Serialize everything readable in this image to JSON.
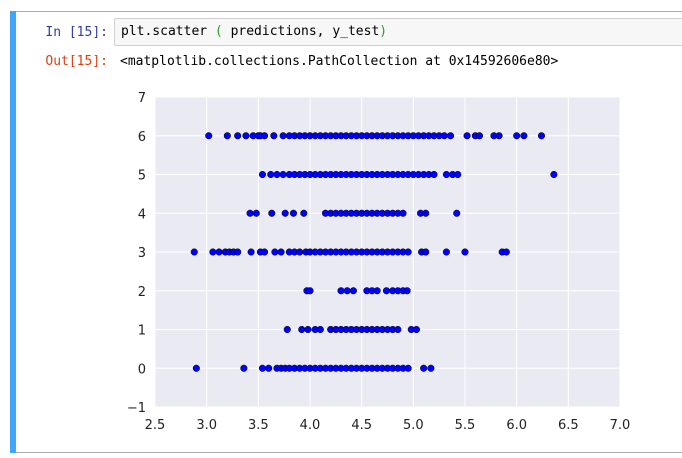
{
  "cell": {
    "in_prompt": "In [15]:",
    "out_prompt": "Out[15]:",
    "code": {
      "func": "plt.scatter",
      "open_paren": "(",
      "args": "predictions, y_test",
      "close_paren": ")"
    },
    "output_repr": "<matplotlib.collections.PathCollection at 0x14592606e80>"
  },
  "colors": {
    "cell_bar": "#42a5f5",
    "in_prompt": "#303f9f",
    "out_prompt": "#d84315",
    "plot_bg": "#eaeaf2",
    "marker": "#0000ff"
  },
  "chart_data": {
    "type": "scatter",
    "xlim": [
      2.5,
      7.0
    ],
    "ylim": [
      -1,
      7
    ],
    "xticks": [
      "2.5",
      "3.0",
      "3.5",
      "4.0",
      "4.5",
      "5.0",
      "5.5",
      "6.0",
      "6.5",
      "7.0"
    ],
    "yticks": [
      "−1",
      "0",
      "1",
      "2",
      "3",
      "4",
      "5",
      "6",
      "7"
    ],
    "grid": true,
    "series": [
      {
        "points": [
          [
            6.0,
            6
          ],
          [
            3.2,
            6
          ],
          [
            3.3,
            6
          ],
          [
            3.38,
            6
          ],
          [
            3.45,
            6
          ],
          [
            3.5,
            6
          ],
          [
            3.52,
            6
          ],
          [
            3.56,
            6
          ],
          [
            3.65,
            6
          ],
          [
            3.74,
            6
          ],
          [
            3.8,
            6
          ],
          [
            3.85,
            6
          ],
          [
            3.9,
            6
          ],
          [
            3.95,
            6
          ],
          [
            4.0,
            6
          ],
          [
            4.05,
            6
          ],
          [
            4.1,
            6
          ],
          [
            4.15,
            6
          ],
          [
            4.2,
            6
          ],
          [
            4.25,
            6
          ],
          [
            4.3,
            6
          ],
          [
            4.35,
            6
          ],
          [
            4.4,
            6
          ],
          [
            4.45,
            6
          ],
          [
            4.5,
            6
          ],
          [
            4.55,
            6
          ],
          [
            4.6,
            6
          ],
          [
            4.65,
            6
          ],
          [
            4.7,
            6
          ],
          [
            4.75,
            6
          ],
          [
            4.8,
            6
          ],
          [
            4.85,
            6
          ],
          [
            4.9,
            6
          ],
          [
            4.95,
            6
          ],
          [
            5.0,
            6
          ],
          [
            5.05,
            6
          ],
          [
            5.1,
            6
          ],
          [
            5.15,
            6
          ],
          [
            5.2,
            6
          ],
          [
            5.25,
            6
          ],
          [
            5.3,
            6
          ],
          [
            5.36,
            6
          ],
          [
            5.52,
            6
          ],
          [
            5.6,
            6
          ],
          [
            5.64,
            6
          ],
          [
            5.78,
            6
          ],
          [
            5.83,
            6
          ],
          [
            6.07,
            6
          ],
          [
            6.24,
            6
          ],
          [
            3.02,
            6
          ],
          [
            3.54,
            5
          ],
          [
            3.62,
            5
          ],
          [
            3.68,
            5
          ],
          [
            3.74,
            5
          ],
          [
            3.8,
            5
          ],
          [
            3.85,
            5
          ],
          [
            3.9,
            5
          ],
          [
            3.95,
            5
          ],
          [
            4.0,
            5
          ],
          [
            4.05,
            5
          ],
          [
            4.1,
            5
          ],
          [
            4.15,
            5
          ],
          [
            4.2,
            5
          ],
          [
            4.25,
            5
          ],
          [
            4.3,
            5
          ],
          [
            4.35,
            5
          ],
          [
            4.4,
            5
          ],
          [
            4.45,
            5
          ],
          [
            4.5,
            5
          ],
          [
            4.55,
            5
          ],
          [
            4.6,
            5
          ],
          [
            4.65,
            5
          ],
          [
            4.7,
            5
          ],
          [
            4.75,
            5
          ],
          [
            4.8,
            5
          ],
          [
            4.85,
            5
          ],
          [
            4.9,
            5
          ],
          [
            4.95,
            5
          ],
          [
            5.0,
            5
          ],
          [
            5.05,
            5
          ],
          [
            5.1,
            5
          ],
          [
            5.15,
            5
          ],
          [
            5.2,
            5
          ],
          [
            5.32,
            5
          ],
          [
            5.38,
            5
          ],
          [
            5.43,
            5
          ],
          [
            6.36,
            5
          ],
          [
            3.42,
            4
          ],
          [
            3.48,
            4
          ],
          [
            3.63,
            4
          ],
          [
            3.76,
            4
          ],
          [
            3.84,
            4
          ],
          [
            3.94,
            4
          ],
          [
            4.15,
            4
          ],
          [
            4.2,
            4
          ],
          [
            4.25,
            4
          ],
          [
            4.3,
            4
          ],
          [
            4.35,
            4
          ],
          [
            4.4,
            4
          ],
          [
            4.45,
            4
          ],
          [
            4.5,
            4
          ],
          [
            4.55,
            4
          ],
          [
            4.6,
            4
          ],
          [
            4.65,
            4
          ],
          [
            4.7,
            4
          ],
          [
            4.75,
            4
          ],
          [
            4.8,
            4
          ],
          [
            4.85,
            4
          ],
          [
            4.9,
            4
          ],
          [
            5.07,
            4
          ],
          [
            5.12,
            4
          ],
          [
            5.42,
            4
          ],
          [
            2.88,
            3
          ],
          [
            3.06,
            3
          ],
          [
            3.12,
            3
          ],
          [
            3.18,
            3
          ],
          [
            3.22,
            3
          ],
          [
            3.26,
            3
          ],
          [
            3.3,
            3
          ],
          [
            3.43,
            3
          ],
          [
            3.52,
            3
          ],
          [
            3.56,
            3
          ],
          [
            3.66,
            3
          ],
          [
            3.72,
            3
          ],
          [
            3.8,
            3
          ],
          [
            3.85,
            3
          ],
          [
            3.9,
            3
          ],
          [
            3.96,
            3
          ],
          [
            4.0,
            3
          ],
          [
            4.05,
            3
          ],
          [
            4.1,
            3
          ],
          [
            4.15,
            3
          ],
          [
            4.2,
            3
          ],
          [
            4.25,
            3
          ],
          [
            4.3,
            3
          ],
          [
            4.35,
            3
          ],
          [
            4.4,
            3
          ],
          [
            4.45,
            3
          ],
          [
            4.5,
            3
          ],
          [
            4.55,
            3
          ],
          [
            4.6,
            3
          ],
          [
            4.65,
            3
          ],
          [
            4.7,
            3
          ],
          [
            4.75,
            3
          ],
          [
            4.8,
            3
          ],
          [
            4.85,
            3
          ],
          [
            4.9,
            3
          ],
          [
            4.95,
            3
          ],
          [
            5.08,
            3
          ],
          [
            5.12,
            3
          ],
          [
            5.32,
            3
          ],
          [
            5.5,
            3
          ],
          [
            5.86,
            3
          ],
          [
            5.9,
            3
          ],
          [
            3.97,
            2
          ],
          [
            4.0,
            2
          ],
          [
            4.3,
            2
          ],
          [
            4.36,
            2
          ],
          [
            4.42,
            2
          ],
          [
            4.55,
            2
          ],
          [
            4.6,
            2
          ],
          [
            4.65,
            2
          ],
          [
            4.74,
            2
          ],
          [
            4.8,
            2
          ],
          [
            4.85,
            2
          ],
          [
            4.9,
            2
          ],
          [
            4.94,
            2
          ],
          [
            3.78,
            1
          ],
          [
            3.92,
            1
          ],
          [
            3.98,
            1
          ],
          [
            4.05,
            1
          ],
          [
            4.1,
            1
          ],
          [
            4.2,
            1
          ],
          [
            4.25,
            1
          ],
          [
            4.3,
            1
          ],
          [
            4.35,
            1
          ],
          [
            4.4,
            1
          ],
          [
            4.45,
            1
          ],
          [
            4.5,
            1
          ],
          [
            4.55,
            1
          ],
          [
            4.6,
            1
          ],
          [
            4.65,
            1
          ],
          [
            4.7,
            1
          ],
          [
            4.75,
            1
          ],
          [
            4.8,
            1
          ],
          [
            4.85,
            1
          ],
          [
            4.98,
            1
          ],
          [
            5.03,
            1
          ],
          [
            2.9,
            0
          ],
          [
            3.36,
            0
          ],
          [
            3.54,
            0
          ],
          [
            3.6,
            0
          ],
          [
            3.68,
            0
          ],
          [
            3.72,
            0
          ],
          [
            3.76,
            0
          ],
          [
            3.8,
            0
          ],
          [
            3.85,
            0
          ],
          [
            3.9,
            0
          ],
          [
            3.95,
            0
          ],
          [
            4.0,
            0
          ],
          [
            4.05,
            0
          ],
          [
            4.1,
            0
          ],
          [
            4.15,
            0
          ],
          [
            4.2,
            0
          ],
          [
            4.25,
            0
          ],
          [
            4.3,
            0
          ],
          [
            4.35,
            0
          ],
          [
            4.4,
            0
          ],
          [
            4.45,
            0
          ],
          [
            4.5,
            0
          ],
          [
            4.55,
            0
          ],
          [
            4.6,
            0
          ],
          [
            4.65,
            0
          ],
          [
            4.7,
            0
          ],
          [
            4.75,
            0
          ],
          [
            4.8,
            0
          ],
          [
            4.85,
            0
          ],
          [
            4.9,
            0
          ],
          [
            4.95,
            0
          ],
          [
            5.1,
            0
          ],
          [
            5.17,
            0
          ]
        ]
      }
    ]
  }
}
